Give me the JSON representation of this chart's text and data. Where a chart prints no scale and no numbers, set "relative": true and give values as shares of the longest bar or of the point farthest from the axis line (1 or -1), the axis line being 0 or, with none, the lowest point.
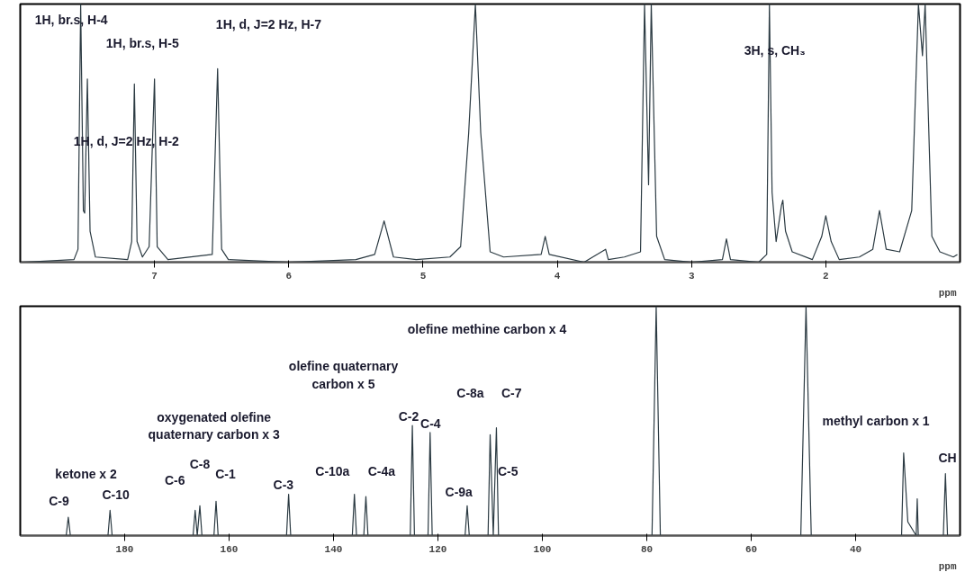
{
  "chart_data": [
    {
      "type": "line",
      "relative": true,
      "xlim": [
        8.0,
        1.0
      ],
      "xticks": [
        7,
        6,
        5,
        4,
        3,
        2
      ],
      "xlabel": "ppm",
      "series": [
        {
          "color": "#2b3a42",
          "x": [
            7.98,
            7.6,
            7.57,
            7.55,
            7.53,
            7.52,
            7.5,
            7.48,
            7.44,
            7.2,
            7.17,
            7.15,
            7.13,
            7.09,
            7.04,
            7.0,
            6.98,
            6.9,
            6.57,
            6.53,
            6.5,
            6.45,
            6.0,
            5.5,
            5.36,
            5.29,
            5.22,
            5.05,
            4.8,
            4.72,
            4.66,
            4.61,
            4.57,
            4.5,
            4.4,
            4.12,
            4.09,
            4.06,
            3.8,
            3.64,
            3.62,
            3.5,
            3.38,
            3.35,
            3.32,
            3.3,
            3.26,
            3.2,
            3.0,
            2.77,
            2.74,
            2.71,
            2.5,
            2.44,
            2.42,
            2.4,
            2.37,
            2.33,
            2.32,
            2.3,
            2.25,
            2.1,
            2.03,
            2.0,
            1.96,
            1.9,
            1.75,
            1.65,
            1.6,
            1.55,
            1.45,
            1.36,
            1.31,
            1.28,
            1.26,
            1.21,
            1.15,
            1.05,
            1.02
          ],
          "values": [
            0.0,
            0.01,
            0.05,
            1.0,
            0.2,
            0.19,
            0.71,
            0.12,
            0.02,
            0.01,
            0.08,
            0.69,
            0.08,
            0.02,
            0.06,
            0.71,
            0.06,
            0.01,
            0.03,
            0.75,
            0.05,
            0.01,
            0.0,
            0.01,
            0.03,
            0.16,
            0.02,
            0.01,
            0.02,
            0.06,
            0.5,
            1.0,
            0.5,
            0.04,
            0.02,
            0.03,
            0.1,
            0.03,
            0.0,
            0.05,
            0.01,
            0.02,
            0.04,
            1.0,
            0.3,
            1.0,
            0.1,
            0.01,
            0.0,
            0.01,
            0.09,
            0.01,
            0.0,
            0.03,
            1.0,
            0.27,
            0.08,
            0.22,
            0.24,
            0.12,
            0.04,
            0.01,
            0.1,
            0.18,
            0.08,
            0.01,
            0.02,
            0.05,
            0.2,
            0.05,
            0.04,
            0.2,
            1.0,
            0.8,
            1.0,
            0.1,
            0.04,
            0.02,
            0.03
          ]
        }
      ],
      "annotations": [
        "1H, br.s, H-4",
        "1H, br.s, H-5",
        "1H, d, J=2 Hz, H-7",
        "1H, d, J=2 Hz, H-2",
        "3H, s, CH₃"
      ]
    },
    {
      "type": "line",
      "relative": true,
      "xlim": [
        200,
        20
      ],
      "xticks": [
        180,
        160,
        140,
        120,
        100,
        80,
        60,
        40
      ],
      "xlabel": "ppm",
      "series": [
        {
          "color": "#2b3a42",
          "x": [
            200,
            191.2,
            190.8,
            190.4,
            183.2,
            182.8,
            182.4,
            166.9,
            166.5,
            166.1,
            165.6,
            165.2,
            162.9,
            162.5,
            162.1,
            149,
            148.6,
            148.2,
            136.4,
            136.0,
            135.6,
            134.2,
            133.8,
            133.4,
            125.3,
            124.9,
            124.5,
            121.9,
            121.5,
            121.1,
            114.8,
            114.4,
            114.0,
            110.4,
            110.0,
            109.4,
            108.8,
            108.4,
            79.0,
            78.2,
            77.4,
            50.5,
            49.5,
            48.5,
            31.2,
            30.8,
            30.0,
            28.4,
            28.2,
            28.0,
            23.2,
            22.8,
            22.4,
            20
          ],
          "values": [
            0,
            0,
            0.08,
            0,
            0,
            0.11,
            0,
            0,
            0.11,
            0,
            0.13,
            0,
            0,
            0.15,
            0,
            0,
            0.18,
            0,
            0,
            0.18,
            0,
            0,
            0.17,
            0,
            0,
            0.48,
            0,
            0,
            0.45,
            0,
            0,
            0.13,
            0,
            0,
            0.44,
            0,
            0.47,
            0,
            0,
            1.0,
            0,
            0,
            1.0,
            0,
            0,
            0.36,
            0.06,
            0,
            0.16,
            0,
            0,
            0.27,
            0,
            0
          ]
        }
      ],
      "annotations": [
        "olefine methine carbon x 4",
        "olefine quaternary\ncarbon x 5",
        "oxygenated olefine\nquaternary carbon x 3",
        "ketone x 2",
        "methyl carbon x 1",
        "C-9",
        "C-10",
        "C-6",
        "C-8",
        "C-1",
        "C-3",
        "C-10a",
        "C-4a",
        "C-2",
        "C-4",
        "C-8a",
        "C-7",
        "C-9a",
        "C-5",
        "CH"
      ]
    }
  ]
}
